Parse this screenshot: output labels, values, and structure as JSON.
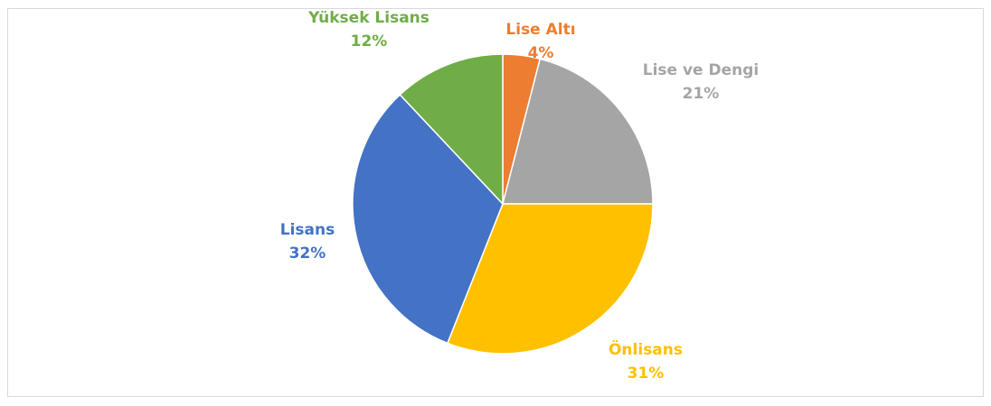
{
  "chart_data": {
    "type": "pie",
    "categories": [
      "Lise Altı",
      "Lise ve Dengi",
      "Önlisans",
      "Lisans",
      "Yüksek Lisans"
    ],
    "values": [
      4,
      21,
      31,
      32,
      12
    ],
    "value_labels": [
      "4%",
      "21%",
      "31%",
      "32%",
      "12%"
    ],
    "colors": [
      "#ed7d31",
      "#a5a5a5",
      "#ffc000",
      "#4472c4",
      "#70ad47"
    ]
  }
}
